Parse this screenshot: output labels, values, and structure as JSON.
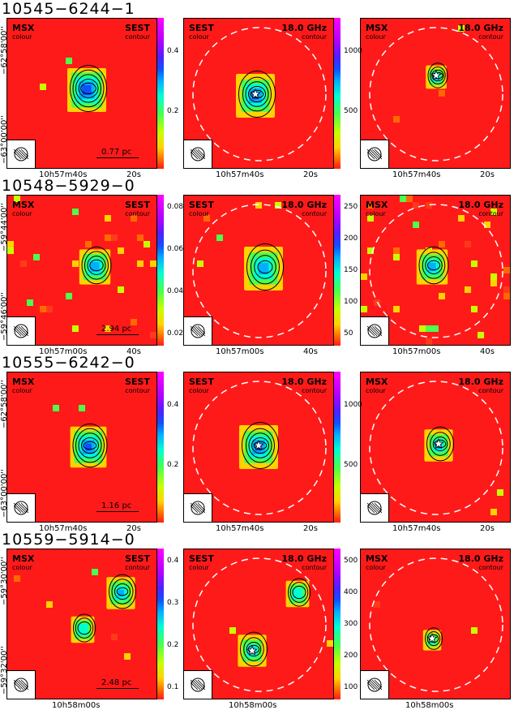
{
  "rows": [
    {
      "title": "10545−6244−1",
      "left": {
        "tl": "MSX",
        "tl_sub": "colour",
        "tr": "SEST",
        "tr_sub": "contour",
        "scale": "0.77 pc"
      },
      "mid": {
        "tl": "SEST",
        "tl_sub": "colour",
        "tr": "18.0 GHz",
        "tr_sub": "contour"
      },
      "right": {
        "tl": "MSX",
        "tl_sub": "colour",
        "tr": "18.0 GHz",
        "tr_sub": "contour"
      },
      "cbar_left": [
        "0.4",
        "0.2"
      ],
      "cbar_mid": [
        "1000",
        "500"
      ],
      "yticks": [
        "−62°58'00''",
        "−63°00'00''"
      ],
      "xticks_left": [
        "10h57m40s",
        "20s"
      ],
      "xticks_mid": [
        "10h57m40s",
        "20s"
      ],
      "xticks_right": [
        "10h57m40s",
        "20s"
      ]
    },
    {
      "title": "10548−5929−0",
      "left": {
        "tl": "MSX",
        "tl_sub": "colour",
        "tr": "SEST",
        "tr_sub": "contour",
        "scale": "2.94 pc"
      },
      "mid": {
        "tl": "SEST",
        "tl_sub": "colour",
        "tr": "18.0 GHz",
        "tr_sub": "contour"
      },
      "right": {
        "tl": "MSX",
        "tl_sub": "colour",
        "tr": "18.0 GHz",
        "tr_sub": "contour"
      },
      "cbar_left": [
        "0.08",
        "0.06",
        "0.04",
        "0.02"
      ],
      "cbar_mid": [
        "250",
        "200",
        "150",
        "100",
        "50"
      ],
      "yticks": [
        "−59°44'00''",
        "−59°46'00''"
      ],
      "xticks_left": [
        "10h57m00s",
        "40s"
      ],
      "xticks_mid": [
        "10h57m00s",
        "40s"
      ],
      "xticks_right": [
        "10h57m00s",
        "40s"
      ]
    },
    {
      "title": "10555−6242−0",
      "left": {
        "tl": "MSX",
        "tl_sub": "colour",
        "tr": "SEST",
        "tr_sub": "contour",
        "scale": "1.16 pc"
      },
      "mid": {
        "tl": "SEST",
        "tl_sub": "colour",
        "tr": "18.0 GHz",
        "tr_sub": "contour"
      },
      "right": {
        "tl": "MSX",
        "tl_sub": "colour",
        "tr": "18.0 GHz",
        "tr_sub": "contour"
      },
      "cbar_left": [
        "0.4",
        "0.2"
      ],
      "cbar_mid": [
        "1000",
        "500"
      ],
      "yticks": [
        "−62°58'00''",
        "−63°00'00''"
      ],
      "xticks_left": [
        "10h57m40s",
        "20s"
      ],
      "xticks_mid": [
        "10h57m40s",
        "20s"
      ],
      "xticks_right": [
        "10h57m40s",
        "20s"
      ]
    },
    {
      "title": "10559−5914−0",
      "left": {
        "tl": "MSX",
        "tl_sub": "colour",
        "tr": "SEST",
        "tr_sub": "contour",
        "scale": "2.48 pc"
      },
      "mid": {
        "tl": "SEST",
        "tl_sub": "colour",
        "tr": "18.0 GHz",
        "tr_sub": "contour"
      },
      "right": {
        "tl": "MSX",
        "tl_sub": "colour",
        "tr": "18.0 GHz",
        "tr_sub": "contour"
      },
      "cbar_left": [
        "0.4",
        "0.3",
        "0.2",
        "0.1"
      ],
      "cbar_mid": [
        "500",
        "400",
        "300",
        "200",
        "100"
      ],
      "yticks": [
        "−59°30'00''",
        "−59°32'00''"
      ],
      "xticks_left": [
        "10h58m00s"
      ],
      "xticks_mid": [
        "10h58m00s"
      ],
      "xticks_right": [
        "10h58m00s"
      ]
    }
  ]
}
